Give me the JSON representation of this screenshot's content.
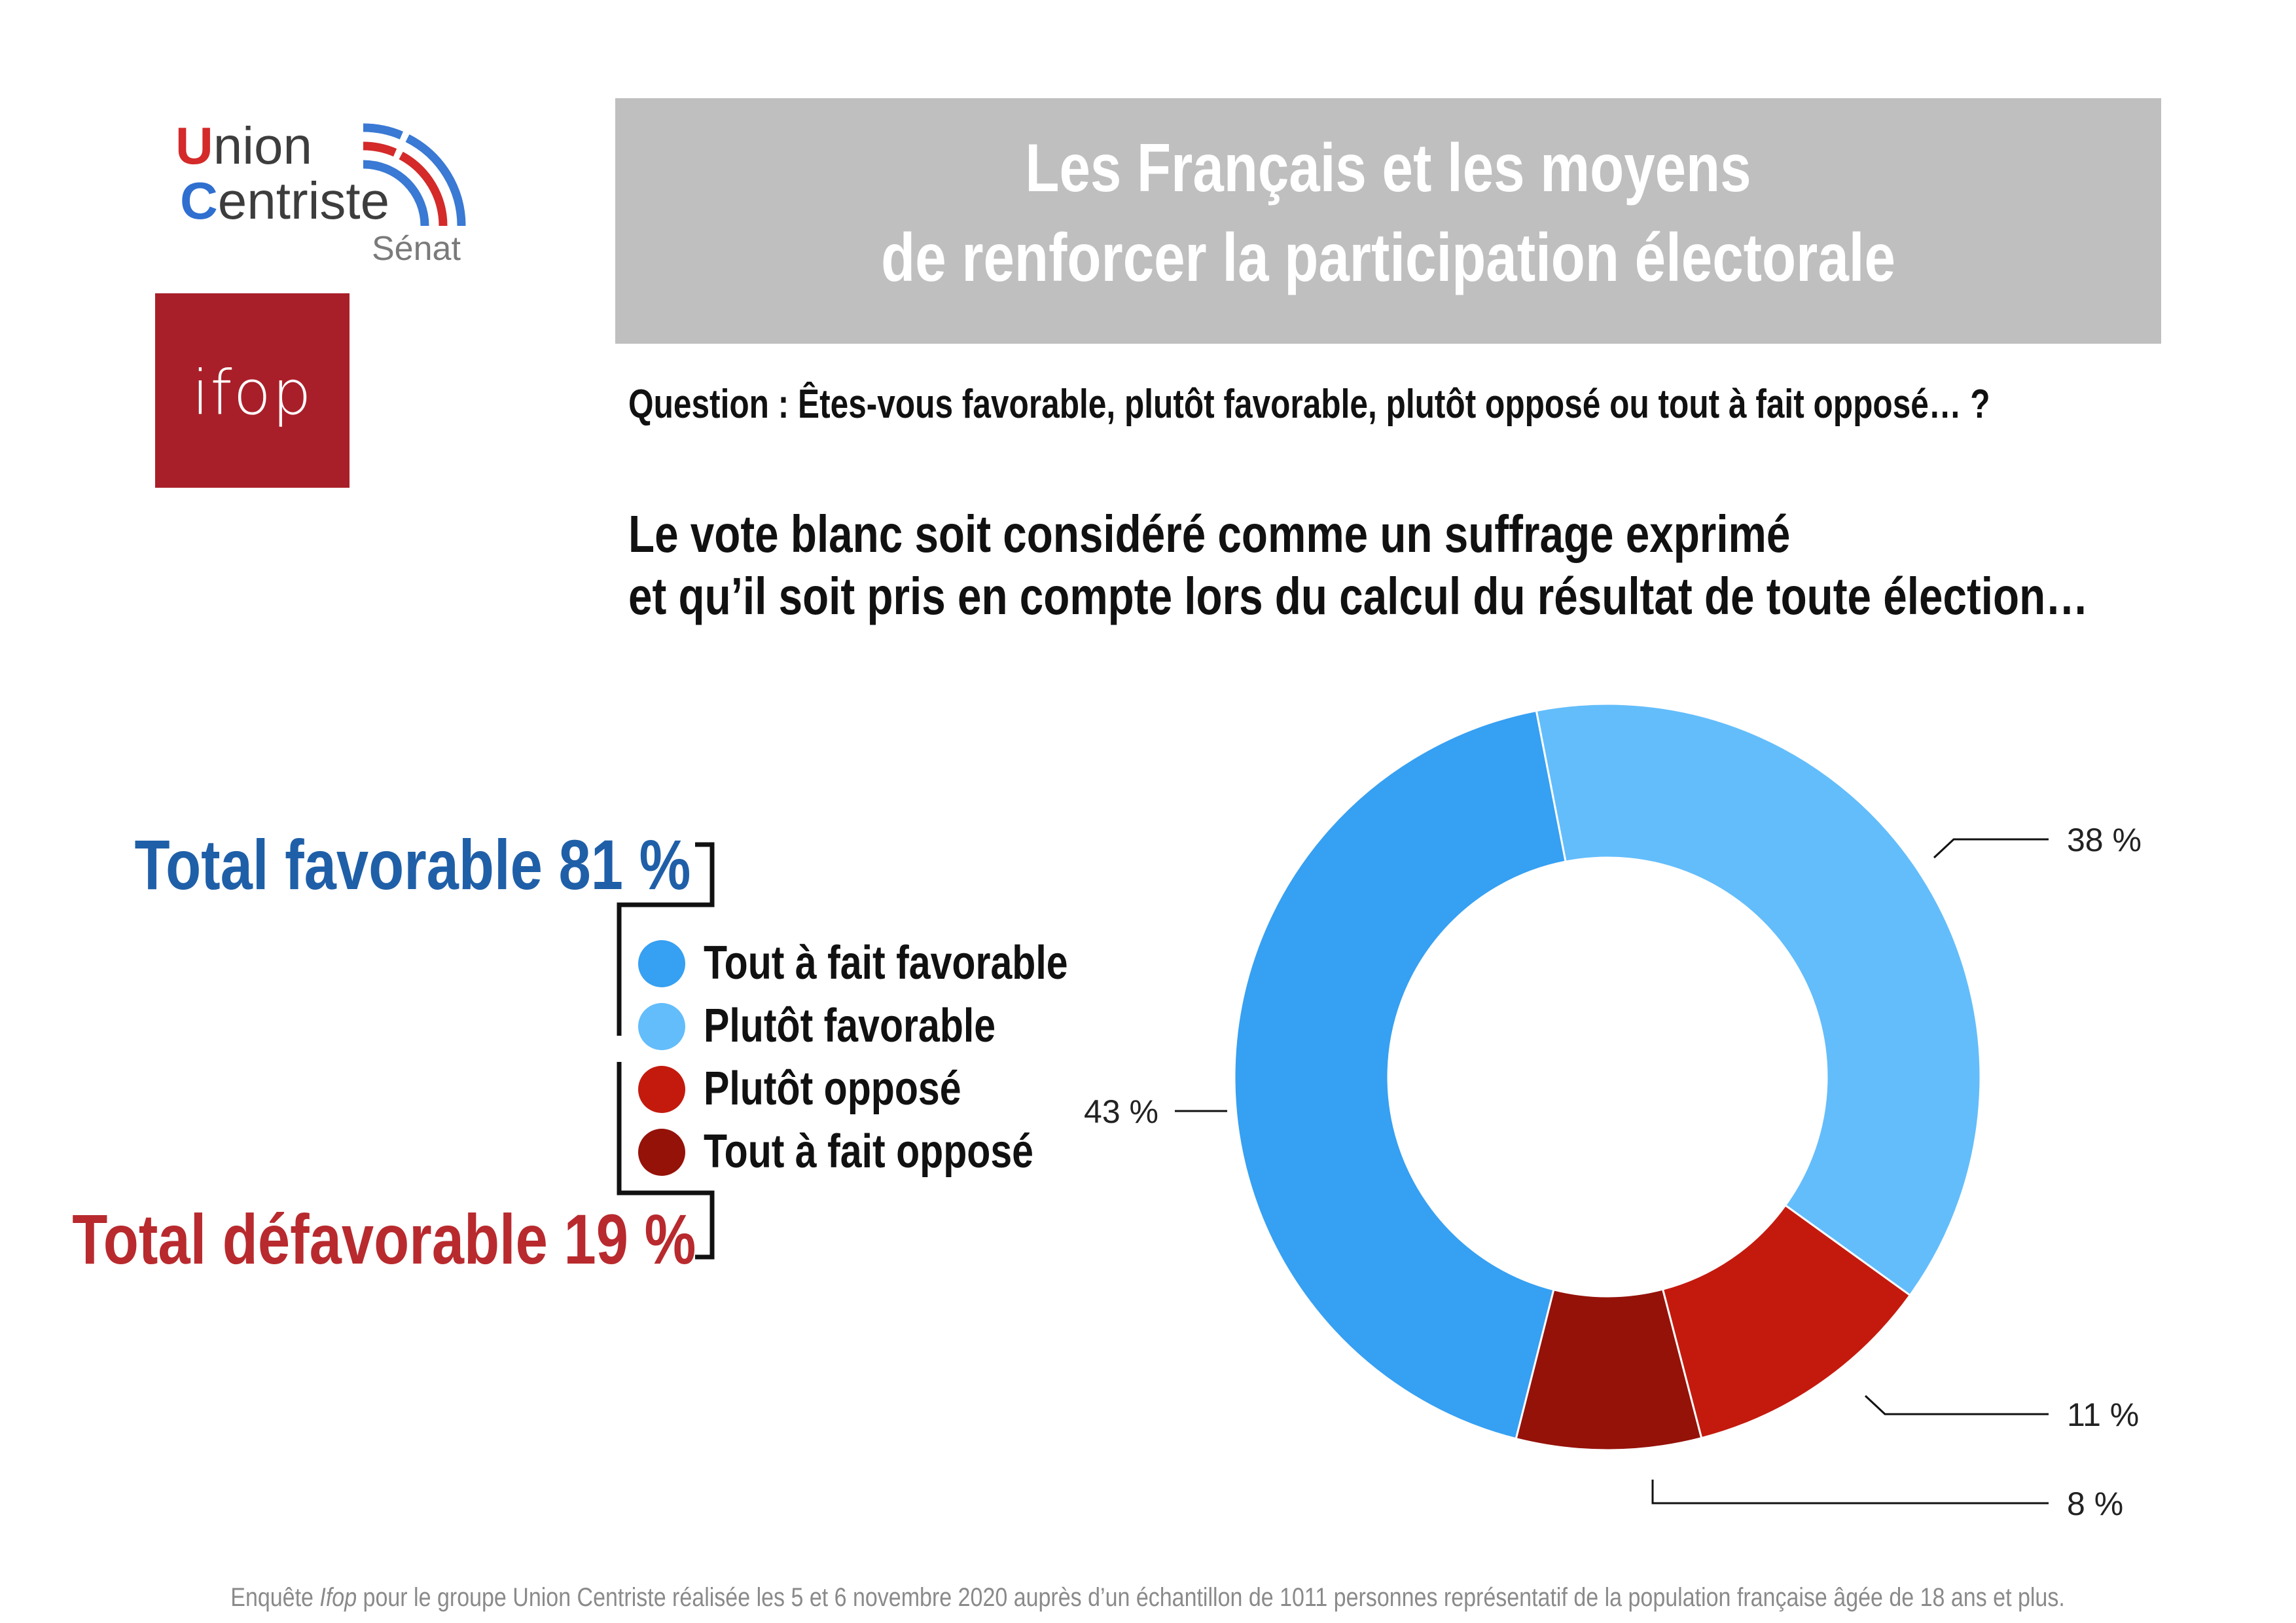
{
  "logos": {
    "union_word": "Union",
    "centriste_word": "Centriste",
    "senat": "Sénat",
    "ifop": "ifop"
  },
  "title": {
    "line1": "Les Français et les moyens",
    "line2": "de renforcer la participation électorale"
  },
  "question": "Question : Êtes-vous favorable, plutôt favorable, plutôt opposé ou tout à fait opposé… ?",
  "statement": {
    "line1": "Le vote blanc soit considéré comme un suffrage exprimé",
    "line2": "et qu’il soit pris en compte lors du calcul du résultat de toute élection…"
  },
  "totals": {
    "favorable": "Total favorable 81 %",
    "defavorable": "Total défavorable 19 %"
  },
  "legend": [
    {
      "label": "Tout à fait favorable",
      "color": "#36a0f2"
    },
    {
      "label": "Plutôt favorable",
      "color": "#63bdfb"
    },
    {
      "label": "Plutôt opposé",
      "color": "#c41a0e"
    },
    {
      "label": "Tout à fait opposé",
      "color": "#951209"
    }
  ],
  "chart_data": {
    "type": "pie",
    "donut": true,
    "categories": [
      "Plutôt favorable",
      "Plutôt opposé",
      "Tout à fait opposé",
      "Tout à fait favorable"
    ],
    "values": [
      38,
      11,
      8,
      43
    ],
    "labels": [
      "38 %",
      "11 %",
      "8 %",
      "43 %"
    ],
    "colors": [
      "#63bdfb",
      "#c41a0e",
      "#951209",
      "#36a0f2"
    ]
  },
  "footer": {
    "before": "Enquête ",
    "italic": "Ifop",
    "after": " pour le groupe Union Centriste réalisée les 5 et 6 novembre 2020 auprès d’un échantillon de 1011 personnes représentatif de la population française âgée de 18 ans et plus."
  }
}
